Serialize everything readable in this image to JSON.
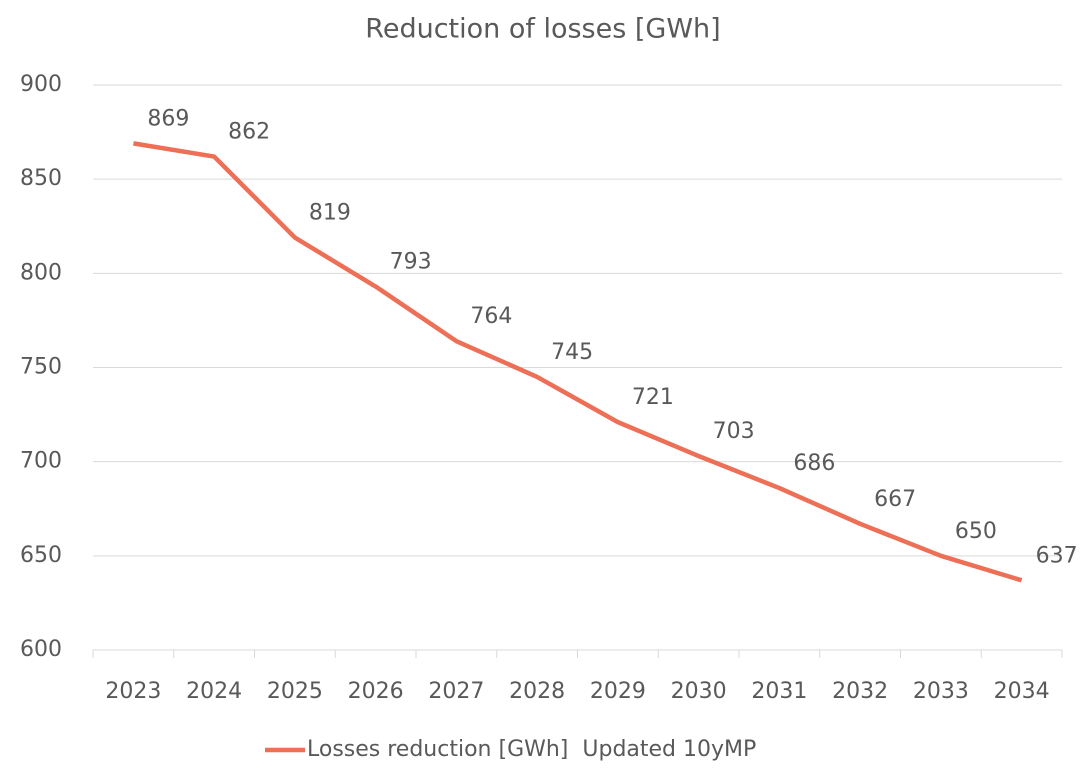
{
  "chart_data": {
    "type": "line",
    "title": "Reduction of losses [GWh]",
    "categories": [
      "2023",
      "2024",
      "2025",
      "2026",
      "2027",
      "2028",
      "2029",
      "2030",
      "2031",
      "2032",
      "2033",
      "2034"
    ],
    "series": [
      {
        "name": "Losses reduction [GWh]  Updated 10yMP",
        "color": "#ed6f56",
        "values": [
          869,
          862,
          819,
          793,
          764,
          745,
          721,
          703,
          686,
          667,
          650,
          637
        ]
      }
    ],
    "ylim": [
      600,
      900
    ],
    "yticks": [
      600,
      650,
      700,
      750,
      800,
      850,
      900
    ],
    "grid": true,
    "legend": "bottom"
  }
}
